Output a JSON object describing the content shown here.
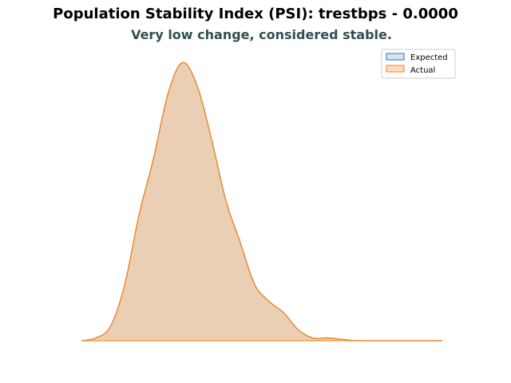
{
  "chart_data": {
    "type": "area",
    "title": "Population Stability Index (PSI): trestbps - 0.0000",
    "subtitle": "Very low change, considered stable.",
    "subtitle_color": "#2f4f4f",
    "axes_visible": false,
    "legend": {
      "placement": "top-right",
      "entries": [
        "Expected",
        "Actual"
      ]
    },
    "series": [
      {
        "name": "Expected",
        "stroke": "#1f77b4",
        "fill": "#aec7e8",
        "x": [
          0,
          0.04,
          0.08,
          0.12,
          0.16,
          0.2,
          0.24,
          0.28,
          0.32,
          0.36,
          0.4,
          0.44,
          0.48,
          0.52,
          0.56,
          0.6,
          0.64,
          0.68,
          0.72,
          0.76,
          0.8,
          0.84,
          0.88,
          0.92,
          0.96,
          1.0
        ],
        "y": [
          0,
          0.01,
          0.05,
          0.2,
          0.45,
          0.65,
          0.88,
          0.99,
          0.91,
          0.72,
          0.5,
          0.35,
          0.2,
          0.14,
          0.1,
          0.04,
          0.01,
          0.01,
          0.005,
          0,
          0,
          0,
          0,
          0,
          0,
          0
        ]
      },
      {
        "name": "Actual",
        "stroke": "#ff7f0e",
        "fill": "#ffbb78",
        "x": [
          0,
          0.04,
          0.08,
          0.12,
          0.16,
          0.2,
          0.24,
          0.28,
          0.32,
          0.36,
          0.4,
          0.44,
          0.48,
          0.52,
          0.56,
          0.6,
          0.64,
          0.68,
          0.72,
          0.76,
          0.8,
          0.84,
          0.88,
          0.92,
          0.96,
          1.0
        ],
        "y": [
          0,
          0.01,
          0.05,
          0.2,
          0.45,
          0.65,
          0.88,
          0.99,
          0.91,
          0.72,
          0.5,
          0.35,
          0.2,
          0.14,
          0.1,
          0.04,
          0.01,
          0.01,
          0.005,
          0,
          0,
          0,
          0,
          0,
          0,
          0
        ]
      }
    ]
  }
}
